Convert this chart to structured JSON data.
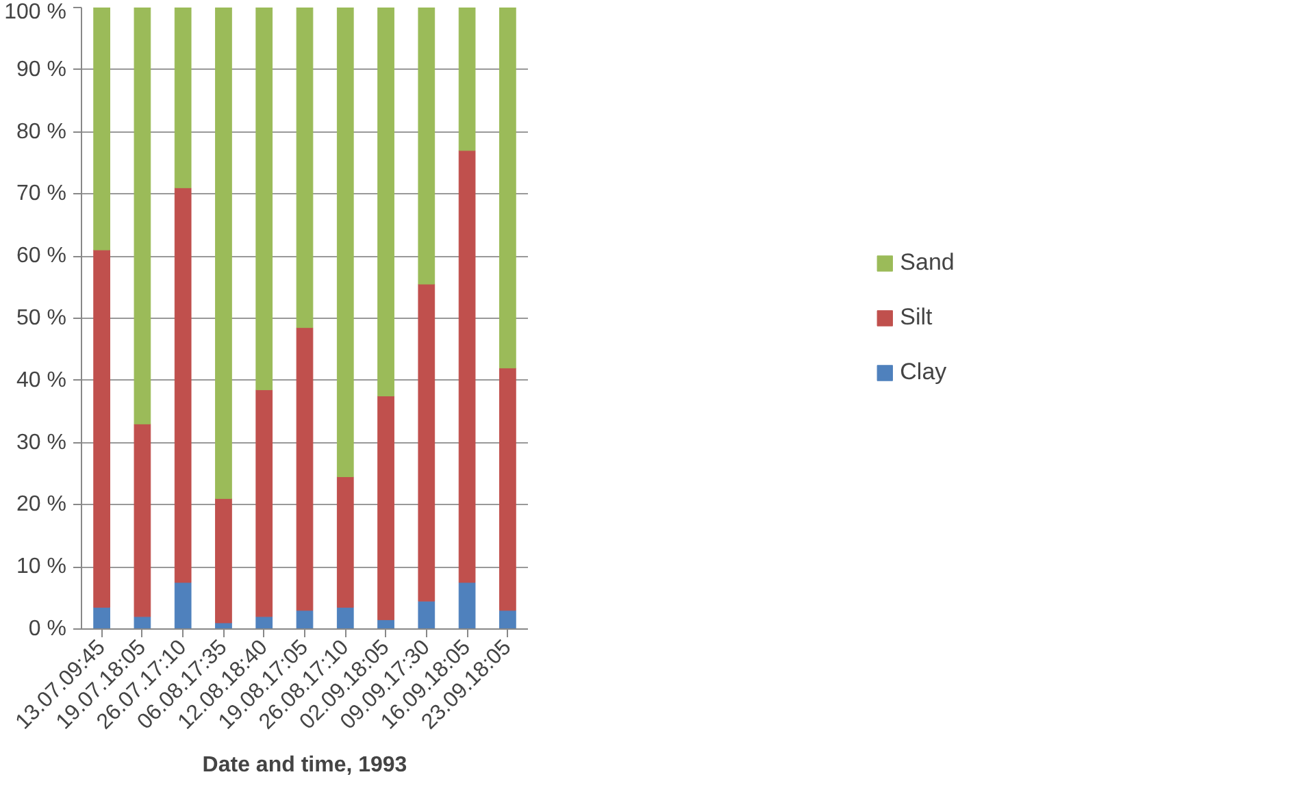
{
  "chart_data": {
    "type": "bar",
    "stacked": true,
    "xlabel": "Date and time, 1993",
    "categories": [
      "13.07.09:45",
      "19.07.18:05",
      "26.07.17:10",
      "06.08.17:35",
      "12.08.18:40",
      "19.08.17:05",
      "26.08.17:10",
      "02.09.18:05",
      "09.09.17:30",
      "16.09.18:05",
      "23.09.18:05"
    ],
    "series": [
      {
        "name": "Clay",
        "color": "#4f81bd",
        "values": [
          3.5,
          2,
          7.5,
          1,
          2,
          3,
          3.5,
          1.5,
          4.5,
          7.5,
          3
        ]
      },
      {
        "name": "Silt",
        "color": "#c0504d",
        "values": [
          57.5,
          31,
          63.5,
          20,
          36.5,
          45.5,
          21,
          36,
          51,
          69.5,
          39
        ]
      },
      {
        "name": "Sand",
        "color": "#9bbb59",
        "values": [
          39,
          67,
          29,
          79,
          61.5,
          51.5,
          75.5,
          62.5,
          44.5,
          23,
          58
        ]
      }
    ],
    "ylim": [
      0,
      100
    ],
    "yticks": [
      {
        "value": 0,
        "label": "0 %"
      },
      {
        "value": 10,
        "label": "10 %"
      },
      {
        "value": 20,
        "label": "20 %"
      },
      {
        "value": 30,
        "label": "30 %"
      },
      {
        "value": 40,
        "label": "40 %"
      },
      {
        "value": 50,
        "label": "50 %"
      },
      {
        "value": 60,
        "label": "60 %"
      },
      {
        "value": 70,
        "label": "70 %"
      },
      {
        "value": 80,
        "label": "80 %"
      },
      {
        "value": 90,
        "label": "90 %"
      },
      {
        "value": 100,
        "label": "100 %"
      }
    ],
    "grid": "y",
    "legend": "right"
  }
}
